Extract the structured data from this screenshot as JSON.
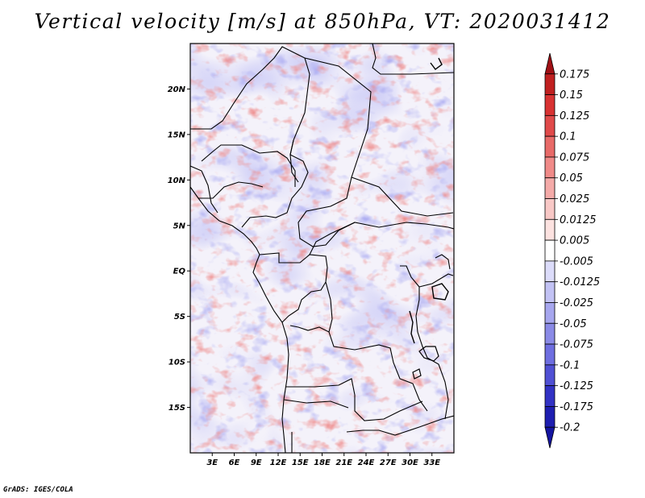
{
  "title": "Vertical velocity [m/s] at 850hPa, VT: 2020031412",
  "credit": "GrADS: IGES/COLA",
  "map": {
    "lon_range": [
      0,
      36
    ],
    "lat_range": [
      -20,
      25
    ],
    "variable": "Vertical velocity [m/s]",
    "level": "850hPa",
    "valid_time": "2020031412",
    "lat_ticks": [
      {
        "lat": 20,
        "label": "20N"
      },
      {
        "lat": 15,
        "label": "15N"
      },
      {
        "lat": 10,
        "label": "10N"
      },
      {
        "lat": 5,
        "label": "5N"
      },
      {
        "lat": 0,
        "label": "EQ"
      },
      {
        "lat": -5,
        "label": "5S"
      },
      {
        "lat": -10,
        "label": "10S"
      },
      {
        "lat": -15,
        "label": "15S"
      }
    ],
    "lon_ticks": [
      {
        "lon": 3,
        "label": "3E"
      },
      {
        "lon": 6,
        "label": "6E"
      },
      {
        "lon": 9,
        "label": "9E"
      },
      {
        "lon": 12,
        "label": "12E"
      },
      {
        "lon": 15,
        "label": "15E"
      },
      {
        "lon": 18,
        "label": "18E"
      },
      {
        "lon": 21,
        "label": "21E"
      },
      {
        "lon": 24,
        "label": "24E"
      },
      {
        "lon": 27,
        "label": "27E"
      },
      {
        "lon": 30,
        "label": "30E"
      },
      {
        "lon": 33,
        "label": "33E"
      }
    ]
  },
  "colorbar": {
    "levels": [
      "0.175",
      "0.15",
      "0.125",
      "0.1",
      "0.075",
      "0.05",
      "0.025",
      "0.0125",
      "0.005",
      "-0.005",
      "-0.0125",
      "-0.025",
      "-0.05",
      "-0.075",
      "-0.1",
      "-0.125",
      "-0.175",
      "-0.2"
    ],
    "colors": [
      "#a01015",
      "#c02020",
      "#d83232",
      "#e04a4a",
      "#e86a68",
      "#f08a88",
      "#f4aaa8",
      "#f8c8c6",
      "#fce2e0",
      "#ffffff",
      "#dcdcfa",
      "#c2c2f4",
      "#a6a6ee",
      "#8a8ae6",
      "#6e6ee0",
      "#5050d4",
      "#3232c4",
      "#1e1eb0",
      "#1414a0"
    ]
  }
}
